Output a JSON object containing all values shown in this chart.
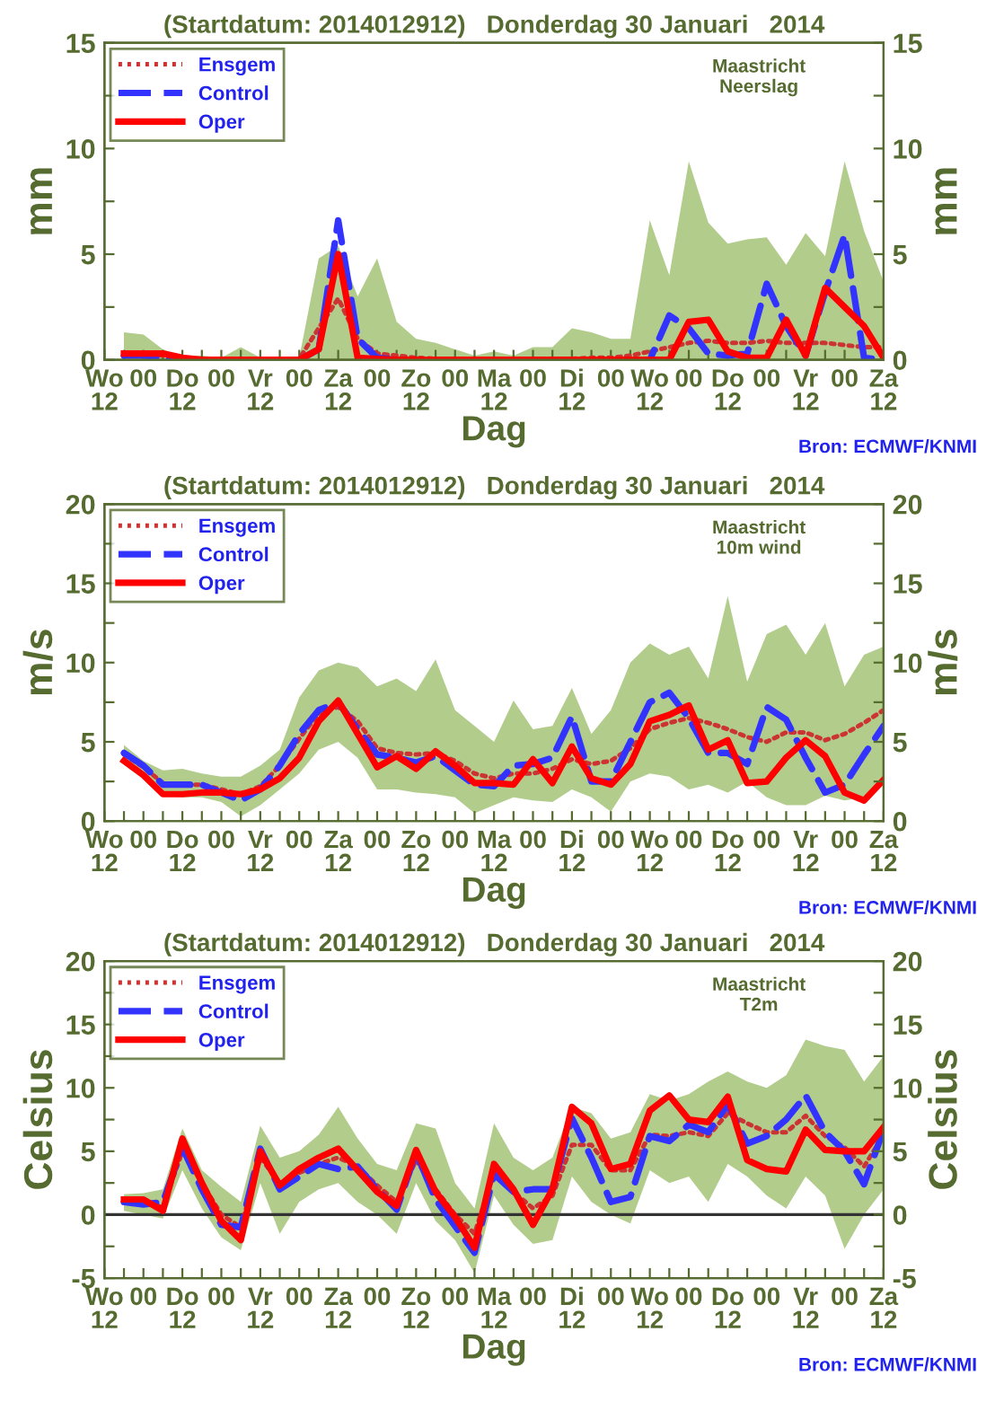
{
  "chart_data": [
    {
      "type": "line",
      "title": "(Startdatum: 2014012912)   Donderdag 30 Januari   2014",
      "xlabel": "Dag",
      "ylabel": "mm",
      "y2label": "mm",
      "annotations": [
        "Maastricht\nNeerslag",
        "Bron: ECMWF/KNMI"
      ],
      "categories": [
        "Wo\n12",
        null,
        "00",
        null,
        "Do\n12",
        null,
        "00",
        null,
        "Vr\n12",
        null,
        "00",
        null,
        "Za\n12",
        null,
        "00",
        null,
        "Zo\n12",
        null,
        "00",
        null,
        "Ma\n12",
        null,
        "00",
        null,
        "Di\n12",
        null,
        "00",
        null,
        "Wo\n12",
        null,
        "00",
        null,
        "Do\n12",
        null,
        "00",
        null,
        "Vr\n12",
        null,
        "00",
        null,
        "Za\n12"
      ],
      "series": [
        {
          "name": "Ensgem",
          "color": "#cc3333",
          "line_style": "dotted",
          "values": [
            null,
            0.3,
            0.3,
            0.2,
            0.1,
            0.05,
            0.05,
            0.05,
            0.05,
            0.05,
            0.05,
            1.5,
            2.9,
            1.0,
            0.3,
            0.2,
            0.1,
            0.05,
            0.05,
            0.05,
            0.05,
            0.05,
            0.05,
            0.05,
            0.05,
            0.1,
            0.1,
            0.2,
            0.4,
            0.6,
            0.8,
            0.9,
            0.8,
            0.8,
            0.9,
            0.8,
            0.8,
            0.8,
            0.7,
            0.6,
            0.6
          ],
          "lower": [
            null,
            0,
            0,
            0,
            0,
            0,
            0,
            0,
            0,
            0,
            0,
            0,
            0,
            0,
            0,
            0,
            0,
            0,
            0,
            0,
            0,
            0,
            0,
            0,
            0,
            0,
            0,
            0,
            0,
            0,
            0,
            0,
            0,
            0,
            0,
            0,
            0,
            0,
            0,
            0,
            0
          ],
          "upper": [
            null,
            1.3,
            1.2,
            0.5,
            0.1,
            0.2,
            0.1,
            0.6,
            0.1,
            0.1,
            0.1,
            4.8,
            5.4,
            3.0,
            4.8,
            1.8,
            1.0,
            0.8,
            0.5,
            0.2,
            0.4,
            0.2,
            0.6,
            0.6,
            1.5,
            1.3,
            1.0,
            1.0,
            6.6,
            4.0,
            9.4,
            6.5,
            5.5,
            5.7,
            5.8,
            4.5,
            6.0,
            4.9,
            9.4,
            6.1,
            3.7
          ]
        },
        {
          "name": "Control",
          "color": "#3333ff",
          "line_style": "dashed",
          "values": [
            null,
            0.2,
            0.2,
            0.1,
            0,
            0,
            0,
            0,
            0,
            0,
            0,
            0.5,
            6.6,
            1.0,
            0.1,
            0,
            0,
            0,
            0,
            0,
            0,
            0,
            0,
            0,
            0,
            0,
            0,
            0,
            0,
            2.1,
            1.5,
            0.3,
            0.2,
            0.3,
            3.6,
            1.6,
            0.2,
            3.2,
            5.9,
            0.1,
            0
          ]
        },
        {
          "name": "Oper",
          "color": "#ff0000",
          "line_style": "solid",
          "values": [
            null,
            0.3,
            0.3,
            0.3,
            0.1,
            0,
            0,
            0,
            0,
            0,
            0,
            0.5,
            5.0,
            0.1,
            0.05,
            0,
            0,
            0,
            0,
            0,
            0,
            0,
            0,
            0,
            0,
            0,
            0,
            0,
            0,
            0,
            1.8,
            1.9,
            0.4,
            0.1,
            0.1,
            1.9,
            0.2,
            3.4,
            2.5,
            1.6,
            0.1
          ]
        }
      ],
      "ylim": [
        0,
        15
      ],
      "yticks": [
        0,
        {
          "value": 2.5,
          "label": null
        },
        5,
        {
          "value": 7.5,
          "label": null
        },
        10,
        {
          "value": 12.5,
          "label": null
        },
        15
      ],
      "y2lim": [
        0,
        15
      ],
      "y2ticks": [
        0,
        {
          "value": 2.5,
          "label": null
        },
        5,
        {
          "value": 7.5,
          "label": null
        },
        10,
        {
          "value": 12.5,
          "label": null
        },
        15
      ],
      "legend": "top left",
      "grid": false
    },
    {
      "type": "line",
      "title": "(Startdatum: 2014012912)   Donderdag 30 Januari   2014",
      "xlabel": "Dag",
      "ylabel": "m/s",
      "y2label": "m/s",
      "annotations": [
        "Maastricht\n10m wind",
        "Bron: ECMWF/KNMI"
      ],
      "categories": [
        "Wo\n12",
        null,
        "00",
        null,
        "Do\n12",
        null,
        "00",
        null,
        "Vr\n12",
        null,
        "00",
        null,
        "Za\n12",
        null,
        "00",
        null,
        "Zo\n12",
        null,
        "00",
        null,
        "Ma\n12",
        null,
        "00",
        null,
        "Di\n12",
        null,
        "00",
        null,
        "Wo\n12",
        null,
        "00",
        null,
        "Do\n12",
        null,
        "00",
        null,
        "Vr\n12",
        null,
        "00",
        null,
        "Za\n12"
      ],
      "series": [
        {
          "name": "Ensgem",
          "color": "#cc3333",
          "line_style": "dotted",
          "values": [
            null,
            4.2,
            3.4,
            2.4,
            2.3,
            2.3,
            2.0,
            1.7,
            2.2,
            3.5,
            5.2,
            6.8,
            7.2,
            6.3,
            4.6,
            4.3,
            4.2,
            4.3,
            3.8,
            3.0,
            2.7,
            3.0,
            3.0,
            3.3,
            3.9,
            3.6,
            3.8,
            4.6,
            5.8,
            6.2,
            6.5,
            6.2,
            5.8,
            5.3,
            5.0,
            5.6,
            5.6,
            5.1,
            5.5,
            6.2,
            7.0
          ],
          "lower": [
            null,
            3.9,
            2.8,
            1.6,
            1.5,
            1.5,
            1.2,
            0.3,
            1.0,
            2.0,
            3.0,
            4.5,
            5.0,
            4.0,
            2.0,
            2.0,
            1.8,
            1.7,
            1.5,
            0.5,
            1.0,
            1.5,
            1.3,
            1.2,
            2.0,
            1.5,
            0.6,
            2.5,
            3.0,
            2.8,
            2.0,
            2.3,
            1.8,
            2.5,
            1.5,
            1.0,
            1.0,
            1.6,
            1.3,
            1.5,
            2.5
          ],
          "upper": [
            null,
            4.8,
            3.8,
            3.2,
            3.3,
            3.0,
            2.8,
            2.8,
            3.5,
            4.5,
            7.8,
            9.5,
            10.0,
            9.7,
            8.5,
            9.0,
            8.2,
            10.2,
            7.0,
            6.0,
            5.0,
            7.6,
            5.8,
            6.0,
            8.4,
            5.5,
            7.0,
            10.0,
            11.2,
            10.5,
            11.0,
            9.0,
            14.2,
            8.8,
            11.8,
            12.4,
            10.5,
            12.5,
            8.5,
            10.5,
            11.0
          ]
        },
        {
          "name": "Control",
          "color": "#3333ff",
          "line_style": "dashed",
          "values": [
            null,
            4.3,
            3.5,
            2.3,
            2.3,
            2.3,
            1.8,
            1.3,
            2.0,
            3.5,
            5.5,
            7.0,
            7.5,
            5.8,
            4.2,
            4.0,
            3.7,
            4.1,
            3.2,
            2.3,
            2.2,
            3.5,
            3.6,
            4.0,
            6.6,
            2.5,
            2.5,
            5.0,
            7.5,
            8.1,
            6.5,
            4.3,
            4.3,
            3.6,
            7.2,
            6.4,
            4.0,
            1.8,
            2.3,
            4.2,
            6.0
          ]
        },
        {
          "name": "Oper",
          "color": "#ff0000",
          "line_style": "solid",
          "values": [
            null,
            3.8,
            2.9,
            1.7,
            1.7,
            1.8,
            1.8,
            1.7,
            2.0,
            2.7,
            4.0,
            6.3,
            7.6,
            5.5,
            3.4,
            4.1,
            3.3,
            4.4,
            3.5,
            2.4,
            2.4,
            2.3,
            3.9,
            2.4,
            4.7,
            2.7,
            2.3,
            3.6,
            6.3,
            6.7,
            7.3,
            4.5,
            5.1,
            2.4,
            2.5,
            4.0,
            5.1,
            4.1,
            1.8,
            1.3,
            2.6
          ]
        }
      ],
      "ylim": [
        0,
        20
      ],
      "yticks": [
        0,
        {
          "value": 2.5,
          "label": null
        },
        5,
        {
          "value": 7.5,
          "label": null
        },
        10,
        {
          "value": 12.5,
          "label": null
        },
        15,
        {
          "value": 17.5,
          "label": null
        },
        20
      ],
      "y2lim": [
        0,
        20
      ],
      "y2ticks": [
        0,
        {
          "value": 2.5,
          "label": null
        },
        5,
        {
          "value": 7.5,
          "label": null
        },
        10,
        {
          "value": 12.5,
          "label": null
        },
        15,
        {
          "value": 17.5,
          "label": null
        },
        20
      ],
      "legend": "top left",
      "grid": false
    },
    {
      "type": "line",
      "title": "(Startdatum: 2014012912)   Donderdag 30 Januari   2014",
      "xlabel": "Dag",
      "ylabel": "Celsius",
      "y2label": "Celsius",
      "annotations": [
        "Maastricht\nT2m",
        "Bron: ECMWF/KNMI"
      ],
      "categories": [
        "Wo\n12",
        null,
        "00",
        null,
        "Do\n12",
        null,
        "00",
        null,
        "Vr\n12",
        null,
        "00",
        null,
        "Za\n12",
        null,
        "00",
        null,
        "Zo\n12",
        null,
        "00",
        null,
        "Ma\n12",
        null,
        "00",
        null,
        "Di\n12",
        null,
        "00",
        null,
        "Wo\n12",
        null,
        "00",
        null,
        "Do\n12",
        null,
        "00",
        null,
        "Vr\n12",
        null,
        "00",
        null,
        "Za\n12"
      ],
      "series": [
        {
          "name": "Ensgem",
          "color": "#cc3333",
          "line_style": "dotted",
          "values": [
            null,
            1.1,
            0.9,
            0.6,
            5.0,
            2.5,
            0.0,
            -1.0,
            4.5,
            2.5,
            3.3,
            4.0,
            4.5,
            3.8,
            2.3,
            1.0,
            4.3,
            2.0,
            0.0,
            -1.5,
            3.3,
            1.8,
            0.5,
            1.5,
            5.5,
            5.5,
            3.5,
            3.5,
            6.3,
            6.2,
            6.5,
            6.2,
            8.0,
            7.2,
            6.5,
            6.5,
            7.8,
            6.2,
            5.3,
            3.8,
            6.3
          ],
          "lower": [
            null,
            0.3,
            0.0,
            -0.3,
            3.5,
            0.5,
            -1.8,
            -2.8,
            2.5,
            -1.5,
            1.0,
            2.0,
            2.5,
            1.0,
            0.0,
            -1.5,
            2.5,
            -0.5,
            -2.0,
            -4.6,
            1.5,
            -0.8,
            -2.3,
            -2.0,
            3.0,
            1.0,
            0.0,
            -0.7,
            3.5,
            2.5,
            3.0,
            1.0,
            4.0,
            3.0,
            1.5,
            0.5,
            3.0,
            1.5,
            -2.7,
            0.0,
            2.0
          ],
          "upper": [
            null,
            1.6,
            1.7,
            2.0,
            6.8,
            3.5,
            2.2,
            1.0,
            7.0,
            4.5,
            5.0,
            6.3,
            8.5,
            6.0,
            4.0,
            3.5,
            7.2,
            6.8,
            2.5,
            0.5,
            7.2,
            4.5,
            3.5,
            4.5,
            8.5,
            8.0,
            6.0,
            6.5,
            9.5,
            9.0,
            9.5,
            10.5,
            11.3,
            10.5,
            10.0,
            11.0,
            13.8,
            13.3,
            13.0,
            10.5,
            12.5
          ]
        },
        {
          "name": "Control",
          "color": "#3333ff",
          "line_style": "dashed",
          "values": [
            null,
            1.0,
            0.8,
            1.0,
            5.3,
            2.0,
            -0.8,
            -1.0,
            5.2,
            2.0,
            3.0,
            4.0,
            3.6,
            3.8,
            2.0,
            0.4,
            4.9,
            1.2,
            -0.9,
            -3.0,
            3.2,
            1.8,
            2.0,
            2.0,
            7.6,
            4.5,
            1.0,
            1.4,
            6.2,
            5.8,
            7.1,
            6.5,
            8.7,
            5.6,
            6.2,
            7.5,
            9.4,
            6.5,
            5.0,
            2.4,
            6.7
          ]
        },
        {
          "name": "Oper",
          "color": "#ff0000",
          "line_style": "solid",
          "values": [
            null,
            1.2,
            1.2,
            0.3,
            6.0,
            2.5,
            -0.5,
            -2.0,
            5.0,
            2.3,
            3.6,
            4.5,
            5.2,
            3.5,
            1.8,
            0.7,
            5.1,
            1.8,
            -0.2,
            -2.6,
            4.0,
            2.0,
            -0.8,
            2.0,
            8.5,
            7.2,
            3.6,
            4.0,
            8.2,
            9.4,
            7.5,
            7.3,
            9.3,
            4.3,
            3.6,
            3.4,
            6.7,
            5.1,
            5.0,
            5.0,
            6.9
          ]
        }
      ],
      "ylim": [
        -5,
        20
      ],
      "yticks": [
        -5,
        {
          "value": -2.5,
          "label": null
        },
        0,
        {
          "value": 2.5,
          "label": null
        },
        5,
        {
          "value": 7.5,
          "label": null
        },
        10,
        {
          "value": 12.5,
          "label": null
        },
        15,
        {
          "value": 17.5,
          "label": null
        },
        20
      ],
      "y2lim": [
        -5,
        20
      ],
      "y2ticks": [
        -5,
        {
          "value": -2.5,
          "label": null
        },
        0,
        {
          "value": 2.5,
          "label": null
        },
        5,
        {
          "value": 7.5,
          "label": null
        },
        10,
        {
          "value": 12.5,
          "label": null
        },
        15,
        {
          "value": 17.5,
          "label": null
        },
        20
      ],
      "ref_lines": [
        {
          "axis": "y",
          "value": 0,
          "color": "#333333"
        }
      ],
      "legend": "top left",
      "grid": false
    }
  ]
}
